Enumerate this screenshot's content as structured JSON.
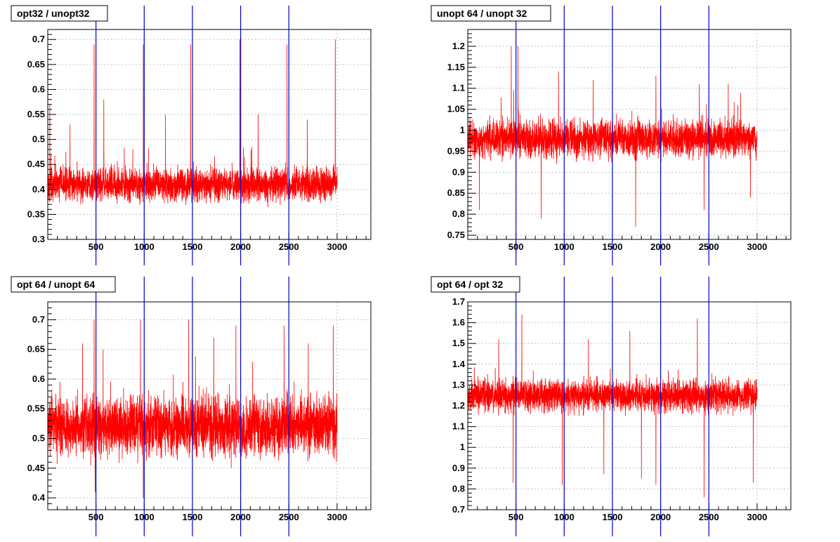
{
  "colors": {
    "data": "#ff0000",
    "markers": "#0000cc",
    "grid": "#c0c0c0",
    "frame": "#000000"
  },
  "markers": [
    500,
    1000,
    1500,
    2000,
    2500
  ],
  "chart_data": [
    {
      "type": "line",
      "title": "opt32 / unopt32",
      "xlabel": "",
      "ylabel": "",
      "xlim": [
        0,
        3350
      ],
      "ylim": [
        0.3,
        0.72
      ],
      "xticks": [
        500,
        1000,
        1500,
        2000,
        2500,
        3000
      ],
      "xtick_labels": [
        "500",
        "1000",
        "1500",
        "2000",
        "2500",
        "3000"
      ],
      "yticks": [
        0.3,
        0.35,
        0.4,
        0.45,
        0.5,
        0.55,
        0.6,
        0.65,
        0.7
      ],
      "ytick_labels": [
        "0.3",
        "0.35",
        "0.4",
        "0.45",
        "0.5",
        "0.55",
        "0.6",
        "0.65",
        "0.7"
      ],
      "grid": true,
      "series": [
        {
          "n_points": 3000,
          "baseline": 0.41,
          "spread": 0.03,
          "min": 0.32,
          "spikes": [
            [
              20,
              0.57
            ],
            [
              480,
              0.69
            ],
            [
              990,
              0.69
            ],
            [
              1480,
              0.69
            ],
            [
              1990,
              0.7
            ],
            [
              2480,
              0.69
            ],
            [
              2980,
              0.7
            ],
            [
              230,
              0.53
            ],
            [
              580,
              0.58
            ],
            [
              1220,
              0.55
            ],
            [
              2180,
              0.55
            ],
            [
              2690,
              0.54
            ]
          ]
        }
      ]
    },
    {
      "type": "line",
      "title": "unopt 64 / unopt 32",
      "xlabel": "",
      "ylabel": "",
      "xlim": [
        0,
        3350
      ],
      "ylim": [
        0.74,
        1.24
      ],
      "xticks": [
        500,
        1000,
        1500,
        2000,
        2500,
        3000
      ],
      "xtick_labels": [
        "500",
        "1000",
        "1500",
        "2000",
        "2500",
        "3000"
      ],
      "yticks": [
        0.75,
        0.8,
        0.85,
        0.9,
        0.95,
        1,
        1.05,
        1.1,
        1.15,
        1.2
      ],
      "ytick_labels": [
        "0.75",
        "0.8",
        "0.85",
        "0.9",
        "0.95",
        "1",
        "1.05",
        "1.1",
        "1.15",
        "1.2"
      ],
      "grid": true,
      "series": [
        {
          "n_points": 3000,
          "baseline": 0.98,
          "spread": 0.04,
          "min": 0.77,
          "spikes": [
            [
              450,
              1.2
            ],
            [
              520,
              1.2
            ],
            [
              940,
              1.14
            ],
            [
              1300,
              1.12
            ],
            [
              1950,
              1.13
            ],
            [
              2400,
              1.11
            ],
            [
              2700,
              1.11
            ],
            [
              1740,
              0.77
            ],
            [
              2450,
              0.81
            ],
            [
              760,
              0.79
            ],
            [
              120,
              0.81
            ],
            [
              2930,
              0.84
            ]
          ]
        }
      ]
    },
    {
      "type": "line",
      "title": "opt 64 / unopt 64",
      "xlabel": "",
      "ylabel": "",
      "xlim": [
        0,
        3350
      ],
      "ylim": [
        0.38,
        0.73
      ],
      "xticks": [
        500,
        1000,
        1500,
        2000,
        2500,
        3000
      ],
      "xtick_labels": [
        "500",
        "1000",
        "1500",
        "2000",
        "2500",
        "3000"
      ],
      "yticks": [
        0.4,
        0.45,
        0.5,
        0.55,
        0.6,
        0.65,
        0.7
      ],
      "ytick_labels": [
        "0.4",
        "0.45",
        "0.5",
        "0.55",
        "0.6",
        "0.65",
        "0.7"
      ],
      "grid": true,
      "series": [
        {
          "n_points": 3000,
          "baseline": 0.52,
          "spread": 0.045,
          "min": 0.4,
          "spikes": [
            [
              480,
              0.7
            ],
            [
              960,
              0.7
            ],
            [
              1460,
              0.7
            ],
            [
              1950,
              0.69
            ],
            [
              2450,
              0.69
            ],
            [
              2960,
              0.69
            ],
            [
              360,
              0.66
            ],
            [
              1720,
              0.67
            ],
            [
              2700,
              0.66
            ],
            [
              990,
              0.4
            ],
            [
              2000,
              0.41
            ],
            [
              490,
              0.41
            ]
          ]
        }
      ]
    },
    {
      "type": "line",
      "title": "opt 64 / opt 32",
      "xlabel": "",
      "ylabel": "",
      "xlim": [
        0,
        3350
      ],
      "ylim": [
        0.7,
        1.7
      ],
      "xticks": [
        500,
        1000,
        1500,
        2000,
        2500,
        3000
      ],
      "xtick_labels": [
        "500",
        "1000",
        "1500",
        "2000",
        "2500",
        "3000"
      ],
      "yticks": [
        0.7,
        0.8,
        0.9,
        1,
        1.1,
        1.2,
        1.3,
        1.4,
        1.5,
        1.6,
        1.7
      ],
      "ytick_labels": [
        "0.7",
        "0.8",
        "0.9",
        "1",
        "1.1",
        "1.2",
        "1.3",
        "1.4",
        "1.5",
        "1.6",
        "1.7"
      ],
      "grid": true,
      "series": [
        {
          "n_points": 3000,
          "baseline": 1.25,
          "spread": 0.07,
          "min": 0.76,
          "spikes": [
            [
              560,
              1.64
            ],
            [
              2380,
              1.62
            ],
            [
              320,
              1.52
            ],
            [
              1250,
              1.52
            ],
            [
              1680,
              1.56
            ],
            [
              2450,
              0.76
            ],
            [
              980,
              0.82
            ],
            [
              1950,
              0.82
            ],
            [
              2960,
              0.83
            ],
            [
              470,
              0.83
            ],
            [
              1410,
              0.87
            ],
            [
              1800,
              0.85
            ]
          ]
        }
      ]
    }
  ]
}
